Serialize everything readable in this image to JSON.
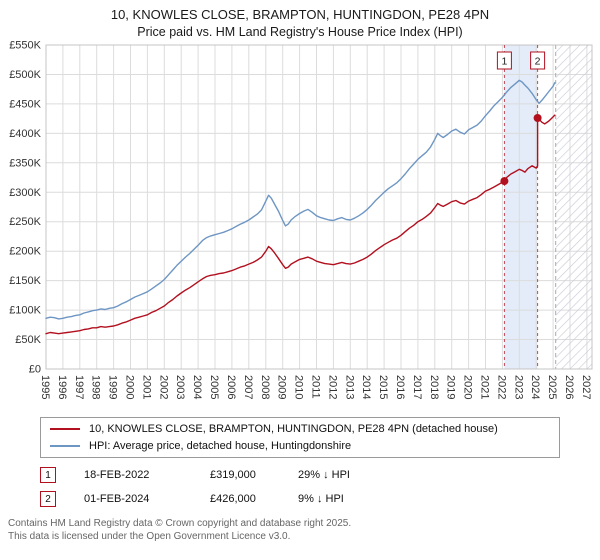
{
  "title": "10, KNOWLES CLOSE, BRAMPTON, HUNTINGDON, PE28 4PN",
  "subtitle": "Price paid vs. HM Land Registry's House Price Index (HPI)",
  "footer": {
    "line1": "Contains HM Land Registry data © Crown copyright and database right 2025.",
    "line2": "This data is licensed under the Open Government Licence v3.0."
  },
  "chart_data": {
    "type": "line",
    "unit": "GBP thousands",
    "xlim": [
      1995,
      2027.3
    ],
    "ylim_k": [
      0,
      550
    ],
    "x_ticks": [
      1995,
      1996,
      1997,
      1998,
      1999,
      2000,
      2001,
      2002,
      2003,
      2004,
      2005,
      2006,
      2007,
      2008,
      2009,
      2010,
      2011,
      2012,
      2013,
      2014,
      2015,
      2016,
      2017,
      2018,
      2019,
      2020,
      2021,
      2022,
      2023,
      2024,
      2025,
      2026,
      2027
    ],
    "y_ticks": [
      {
        "v": 0,
        "label": "£0"
      },
      {
        "v": 50,
        "label": "£50K"
      },
      {
        "v": 100,
        "label": "£100K"
      },
      {
        "v": 150,
        "label": "£150K"
      },
      {
        "v": 200,
        "label": "£200K"
      },
      {
        "v": 250,
        "label": "£250K"
      },
      {
        "v": 300,
        "label": "£300K"
      },
      {
        "v": 350,
        "label": "£350K"
      },
      {
        "v": 400,
        "label": "£400K"
      },
      {
        "v": 450,
        "label": "£450K"
      },
      {
        "v": 500,
        "label": "£500K"
      },
      {
        "v": 550,
        "label": "£550K"
      }
    ],
    "future_start": 2025.15,
    "shade_period": [
      2022.12,
      2024.08
    ],
    "colors": {
      "red": "#b2101f",
      "blue": "#6e96c4",
      "shade": "#e3ecf8",
      "grid": "#dcdcdc",
      "hatch": "#c8ccd6",
      "axis_text": "#333333"
    },
    "series": [
      {
        "id": "price-paid",
        "name": "10, KNOWLES CLOSE, BRAMPTON, HUNTINGDON, PE28 4PN (detached house)",
        "color": "#b2101f",
        "points": [
          [
            1995,
            60
          ],
          [
            1995.25,
            62
          ],
          [
            1995.5,
            61
          ],
          [
            1995.75,
            60
          ],
          [
            1996,
            61
          ],
          [
            1996.25,
            62
          ],
          [
            1996.5,
            63
          ],
          [
            1996.75,
            64
          ],
          [
            1997,
            65
          ],
          [
            1997.25,
            67
          ],
          [
            1997.5,
            68
          ],
          [
            1997.75,
            70
          ],
          [
            1998,
            70
          ],
          [
            1998.25,
            72
          ],
          [
            1998.5,
            71
          ],
          [
            1998.75,
            72
          ],
          [
            1999,
            73
          ],
          [
            1999.25,
            75
          ],
          [
            1999.5,
            78
          ],
          [
            1999.75,
            80
          ],
          [
            2000,
            83
          ],
          [
            2000.25,
            86
          ],
          [
            2000.5,
            88
          ],
          [
            2000.75,
            90
          ],
          [
            2001,
            92
          ],
          [
            2001.25,
            96
          ],
          [
            2001.5,
            99
          ],
          [
            2001.75,
            103
          ],
          [
            2002,
            107
          ],
          [
            2002.25,
            113
          ],
          [
            2002.5,
            118
          ],
          [
            2002.75,
            124
          ],
          [
            2003,
            129
          ],
          [
            2003.25,
            134
          ],
          [
            2003.5,
            138
          ],
          [
            2003.75,
            143
          ],
          [
            2004,
            148
          ],
          [
            2004.25,
            153
          ],
          [
            2004.5,
            157
          ],
          [
            2004.75,
            159
          ],
          [
            2005,
            160
          ],
          [
            2005.25,
            162
          ],
          [
            2005.5,
            163
          ],
          [
            2005.75,
            165
          ],
          [
            2006,
            167
          ],
          [
            2006.25,
            170
          ],
          [
            2006.5,
            173
          ],
          [
            2006.75,
            175
          ],
          [
            2007,
            178
          ],
          [
            2007.25,
            181
          ],
          [
            2007.5,
            185
          ],
          [
            2007.75,
            190
          ],
          [
            2008,
            200
          ],
          [
            2008.17,
            208
          ],
          [
            2008.33,
            204
          ],
          [
            2008.5,
            198
          ],
          [
            2008.75,
            188
          ],
          [
            2009,
            177
          ],
          [
            2009.17,
            171
          ],
          [
            2009.33,
            173
          ],
          [
            2009.5,
            178
          ],
          [
            2009.75,
            182
          ],
          [
            2010,
            186
          ],
          [
            2010.25,
            188
          ],
          [
            2010.5,
            190
          ],
          [
            2010.75,
            187
          ],
          [
            2011,
            183
          ],
          [
            2011.25,
            181
          ],
          [
            2011.5,
            179
          ],
          [
            2011.75,
            178
          ],
          [
            2012,
            177
          ],
          [
            2012.25,
            179
          ],
          [
            2012.5,
            181
          ],
          [
            2012.75,
            179
          ],
          [
            2013,
            178
          ],
          [
            2013.25,
            180
          ],
          [
            2013.5,
            183
          ],
          [
            2013.75,
            186
          ],
          [
            2014,
            190
          ],
          [
            2014.25,
            195
          ],
          [
            2014.5,
            201
          ],
          [
            2014.75,
            206
          ],
          [
            2015,
            211
          ],
          [
            2015.25,
            215
          ],
          [
            2015.5,
            219
          ],
          [
            2015.75,
            222
          ],
          [
            2016,
            227
          ],
          [
            2016.25,
            233
          ],
          [
            2016.5,
            239
          ],
          [
            2016.75,
            244
          ],
          [
            2017,
            250
          ],
          [
            2017.25,
            254
          ],
          [
            2017.5,
            259
          ],
          [
            2017.75,
            265
          ],
          [
            2018,
            274
          ],
          [
            2018.17,
            281
          ],
          [
            2018.33,
            278
          ],
          [
            2018.5,
            276
          ],
          [
            2018.75,
            280
          ],
          [
            2019,
            284
          ],
          [
            2019.25,
            286
          ],
          [
            2019.5,
            282
          ],
          [
            2019.75,
            280
          ],
          [
            2020,
            285
          ],
          [
            2020.25,
            288
          ],
          [
            2020.5,
            291
          ],
          [
            2020.75,
            296
          ],
          [
            2021,
            302
          ],
          [
            2021.25,
            305
          ],
          [
            2021.5,
            309
          ],
          [
            2021.75,
            313
          ],
          [
            2022.12,
            319
          ],
          [
            2022.25,
            325
          ],
          [
            2022.5,
            331
          ],
          [
            2022.75,
            335
          ],
          [
            2023,
            339
          ],
          [
            2023.17,
            337
          ],
          [
            2023.33,
            334
          ],
          [
            2023.5,
            340
          ],
          [
            2023.75,
            345
          ],
          [
            2024,
            341
          ],
          [
            2024.08,
            345
          ],
          [
            2024.08,
            426
          ],
          [
            2024.17,
            424
          ],
          [
            2024.33,
            419
          ],
          [
            2024.5,
            416
          ],
          [
            2024.75,
            421
          ],
          [
            2025,
            428
          ],
          [
            2025.1,
            431
          ]
        ]
      },
      {
        "id": "hpi",
        "name": "HPI: Average price, detached house, Huntingdonshire",
        "color": "#6e96c4",
        "points": [
          [
            1995,
            86
          ],
          [
            1995.25,
            88
          ],
          [
            1995.5,
            87
          ],
          [
            1995.75,
            85
          ],
          [
            1996,
            86
          ],
          [
            1996.25,
            88
          ],
          [
            1996.5,
            89
          ],
          [
            1996.75,
            91
          ],
          [
            1997,
            92
          ],
          [
            1997.25,
            95
          ],
          [
            1997.5,
            97
          ],
          [
            1997.75,
            99
          ],
          [
            1998,
            100
          ],
          [
            1998.25,
            102
          ],
          [
            1998.5,
            101
          ],
          [
            1998.75,
            103
          ],
          [
            1999,
            104
          ],
          [
            1999.25,
            107
          ],
          [
            1999.5,
            111
          ],
          [
            1999.75,
            114
          ],
          [
            2000,
            118
          ],
          [
            2000.25,
            122
          ],
          [
            2000.5,
            125
          ],
          [
            2000.75,
            128
          ],
          [
            2001,
            131
          ],
          [
            2001.25,
            136
          ],
          [
            2001.5,
            141
          ],
          [
            2001.75,
            146
          ],
          [
            2002,
            152
          ],
          [
            2002.25,
            160
          ],
          [
            2002.5,
            168
          ],
          [
            2002.75,
            176
          ],
          [
            2003,
            183
          ],
          [
            2003.25,
            190
          ],
          [
            2003.5,
            196
          ],
          [
            2003.75,
            203
          ],
          [
            2004,
            210
          ],
          [
            2004.25,
            218
          ],
          [
            2004.5,
            223
          ],
          [
            2004.75,
            226
          ],
          [
            2005,
            228
          ],
          [
            2005.25,
            230
          ],
          [
            2005.5,
            232
          ],
          [
            2005.75,
            235
          ],
          [
            2006,
            238
          ],
          [
            2006.25,
            242
          ],
          [
            2006.5,
            246
          ],
          [
            2006.75,
            249
          ],
          [
            2007,
            253
          ],
          [
            2007.25,
            258
          ],
          [
            2007.5,
            263
          ],
          [
            2007.75,
            270
          ],
          [
            2008,
            285
          ],
          [
            2008.17,
            295
          ],
          [
            2008.33,
            290
          ],
          [
            2008.5,
            281
          ],
          [
            2008.75,
            268
          ],
          [
            2009,
            252
          ],
          [
            2009.17,
            243
          ],
          [
            2009.33,
            246
          ],
          [
            2009.5,
            253
          ],
          [
            2009.75,
            259
          ],
          [
            2010,
            264
          ],
          [
            2010.25,
            268
          ],
          [
            2010.5,
            271
          ],
          [
            2010.75,
            266
          ],
          [
            2011,
            260
          ],
          [
            2011.25,
            257
          ],
          [
            2011.5,
            255
          ],
          [
            2011.75,
            253
          ],
          [
            2012,
            252
          ],
          [
            2012.25,
            255
          ],
          [
            2012.5,
            257
          ],
          [
            2012.75,
            254
          ],
          [
            2013,
            253
          ],
          [
            2013.25,
            256
          ],
          [
            2013.5,
            260
          ],
          [
            2013.75,
            265
          ],
          [
            2014,
            271
          ],
          [
            2014.25,
            278
          ],
          [
            2014.5,
            286
          ],
          [
            2014.75,
            293
          ],
          [
            2015,
            300
          ],
          [
            2015.25,
            306
          ],
          [
            2015.5,
            311
          ],
          [
            2015.75,
            316
          ],
          [
            2016,
            323
          ],
          [
            2016.25,
            331
          ],
          [
            2016.5,
            340
          ],
          [
            2016.75,
            348
          ],
          [
            2017,
            356
          ],
          [
            2017.25,
            362
          ],
          [
            2017.5,
            368
          ],
          [
            2017.75,
            377
          ],
          [
            2018,
            390
          ],
          [
            2018.17,
            400
          ],
          [
            2018.33,
            396
          ],
          [
            2018.5,
            393
          ],
          [
            2018.75,
            398
          ],
          [
            2019,
            404
          ],
          [
            2019.25,
            407
          ],
          [
            2019.5,
            402
          ],
          [
            2019.75,
            399
          ],
          [
            2020,
            406
          ],
          [
            2020.25,
            410
          ],
          [
            2020.5,
            414
          ],
          [
            2020.75,
            421
          ],
          [
            2021,
            430
          ],
          [
            2021.25,
            438
          ],
          [
            2021.5,
            447
          ],
          [
            2021.75,
            454
          ],
          [
            2022,
            461
          ],
          [
            2022.25,
            470
          ],
          [
            2022.5,
            478
          ],
          [
            2022.75,
            484
          ],
          [
            2023,
            490
          ],
          [
            2023.17,
            487
          ],
          [
            2023.33,
            482
          ],
          [
            2023.5,
            477
          ],
          [
            2023.75,
            468
          ],
          [
            2024,
            457
          ],
          [
            2024.17,
            451
          ],
          [
            2024.33,
            456
          ],
          [
            2024.5,
            462
          ],
          [
            2024.75,
            471
          ],
          [
            2025,
            480
          ],
          [
            2025.1,
            486
          ]
        ]
      }
    ],
    "sales": [
      {
        "n": "1",
        "date": "18-FEB-2022",
        "price": "£319,000",
        "vs_hpi": "29% ↓ HPI",
        "x": 2022.12,
        "value_k": 319
      },
      {
        "n": "2",
        "date": "01-FEB-2024",
        "price": "£426,000",
        "vs_hpi": "9% ↓ HPI",
        "x": 2024.08,
        "value_k": 426
      }
    ]
  }
}
